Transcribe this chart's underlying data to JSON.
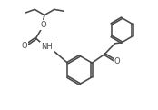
{
  "bg": "#ffffff",
  "lc": "#4a4a4a",
  "lw": 1.15,
  "fs": 6.0,
  "xlim": [
    0,
    10
  ],
  "ylim": [
    0,
    7
  ]
}
